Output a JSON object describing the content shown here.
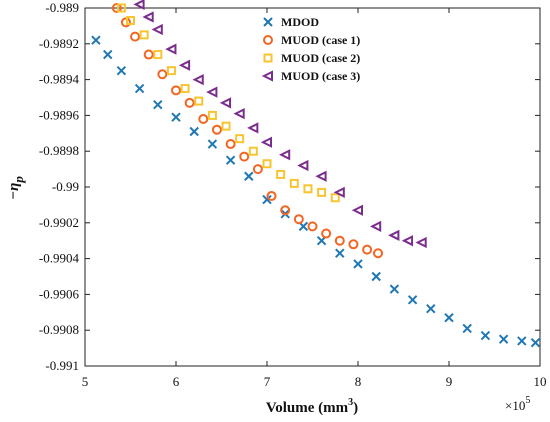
{
  "chart_data": {
    "type": "scatter",
    "title": "",
    "xlabel_main": "Volume (mm",
    "xlabel_sup": "3",
    "xlabel_close": ")",
    "ylabel_main": "−η",
    "ylabel_sub": "p",
    "x_multiplier_base": "×10",
    "x_multiplier_exp": "5",
    "xlim": [
      5,
      10
    ],
    "ylim": [
      -0.991,
      -0.989
    ],
    "xticks": [
      "5",
      "6",
      "7",
      "8",
      "9",
      "10"
    ],
    "yticks": [
      "-0.989",
      "-0.9892",
      "-0.9894",
      "-0.9896",
      "-0.9898",
      "-0.99",
      "-0.9902",
      "-0.9904",
      "-0.9906",
      "-0.9908",
      "-0.991"
    ],
    "grid": false,
    "legend_position": "top-right",
    "series": [
      {
        "name": "MDOD",
        "marker": "x",
        "color": "#1f77b4",
        "x": [
          5.12,
          5.25,
          5.4,
          5.6,
          5.8,
          6.0,
          6.2,
          6.4,
          6.6,
          6.8,
          7.0,
          7.2,
          7.4,
          7.6,
          7.8,
          8.0,
          8.2,
          8.4,
          8.6,
          8.8,
          9.0,
          9.2,
          9.4,
          9.6,
          9.8,
          9.95
        ],
        "y": [
          -0.98918,
          -0.98926,
          -0.98935,
          -0.98945,
          -0.98954,
          -0.98961,
          -0.98969,
          -0.98976,
          -0.98985,
          -0.98994,
          -0.99007,
          -0.99015,
          -0.99022,
          -0.9903,
          -0.99037,
          -0.99043,
          -0.9905,
          -0.99057,
          -0.99063,
          -0.99068,
          -0.99073,
          -0.99079,
          -0.99083,
          -0.99085,
          -0.99086,
          -0.99087
        ]
      },
      {
        "name": "MUOD (case 1)",
        "marker": "o",
        "color": "#f26522",
        "x": [
          5.35,
          5.45,
          5.55,
          5.7,
          5.85,
          6.0,
          6.15,
          6.3,
          6.45,
          6.6,
          6.75,
          6.9,
          7.05,
          7.2,
          7.35,
          7.5,
          7.65,
          7.8,
          7.95,
          8.1,
          8.22
        ],
        "y": [
          -0.989,
          -0.98908,
          -0.98916,
          -0.98926,
          -0.98937,
          -0.98946,
          -0.98953,
          -0.98962,
          -0.98968,
          -0.98976,
          -0.98983,
          -0.9899,
          -0.99005,
          -0.99013,
          -0.99018,
          -0.99022,
          -0.99026,
          -0.9903,
          -0.99032,
          -0.99035,
          -0.99037
        ]
      },
      {
        "name": "MUOD (case 2)",
        "marker": "s",
        "color": "#f7c530",
        "x": [
          5.4,
          5.5,
          5.65,
          5.8,
          5.95,
          6.1,
          6.25,
          6.4,
          6.55,
          6.7,
          6.85,
          7.0,
          7.15,
          7.3,
          7.45,
          7.6,
          7.75
        ],
        "y": [
          -0.989,
          -0.98907,
          -0.98915,
          -0.98926,
          -0.98935,
          -0.98945,
          -0.98952,
          -0.9896,
          -0.98966,
          -0.98973,
          -0.9898,
          -0.98987,
          -0.98993,
          -0.98998,
          -0.99001,
          -0.99003,
          -0.99006
        ]
      },
      {
        "name": "MUOD (case 3)",
        "marker": "<",
        "color": "#7b2d8e",
        "x": [
          5.6,
          5.7,
          5.8,
          5.95,
          6.1,
          6.25,
          6.4,
          6.55,
          6.7,
          6.85,
          7.0,
          7.2,
          7.4,
          7.6,
          7.8,
          8.0,
          8.2,
          8.4,
          8.55,
          8.7
        ],
        "y": [
          -0.98898,
          -0.98905,
          -0.98912,
          -0.98923,
          -0.98932,
          -0.9894,
          -0.98947,
          -0.98953,
          -0.98959,
          -0.98967,
          -0.98975,
          -0.98982,
          -0.98988,
          -0.98994,
          -0.99003,
          -0.99013,
          -0.99022,
          -0.99027,
          -0.9903,
          -0.99031
        ]
      }
    ]
  }
}
